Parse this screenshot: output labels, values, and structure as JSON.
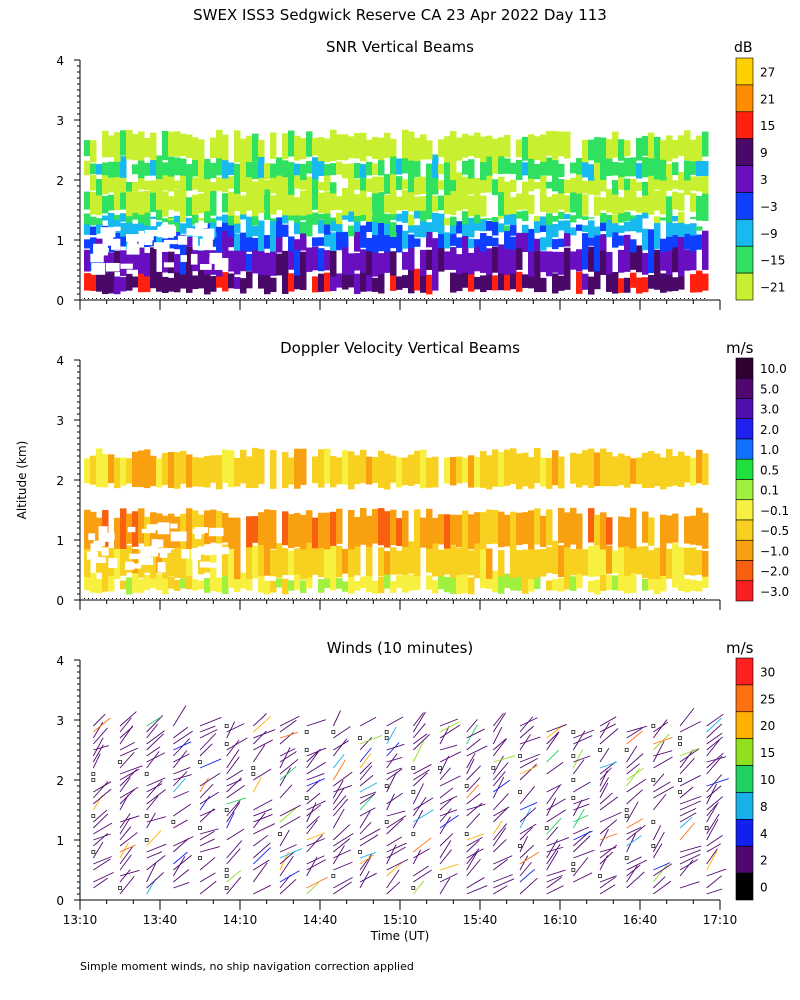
{
  "page_title": "SWEX ISS3 Sedgwick Reserve CA  23 Apr 2022 Day 113",
  "y_axis_label": "Altitude (km)",
  "x_axis_label": "Time (UT)",
  "footnote": "Simple moment winds, no ship navigation correction applied",
  "chart_data": [
    {
      "id": "snr",
      "type": "heatmap",
      "title": "SNR Vertical Beams",
      "unit": "dB",
      "ylim": [
        0,
        4
      ],
      "yticks": [
        "0",
        "1",
        "2",
        "3",
        "4"
      ],
      "xlim": [
        "13:10",
        "17:10"
      ],
      "colorbar": {
        "labels": [
          "27",
          "21",
          "15",
          "9",
          "3",
          "−3",
          "−9",
          "−15",
          "−21"
        ],
        "colors": [
          "#ffd000",
          "#ff8c00",
          "#ff2010",
          "#4a0868",
          "#6810c0",
          "#1040ff",
          "#18b8f0",
          "#30e060",
          "#c8f030"
        ]
      },
      "layers": [
        {
          "from_km": 0.15,
          "to_km": 0.45,
          "level": 9
        },
        {
          "from_km": 0.45,
          "to_km": 0.85,
          "level": 3
        },
        {
          "from_km": 0.85,
          "to_km": 1.1,
          "level": -3
        },
        {
          "from_km": 1.1,
          "to_km": 1.3,
          "level": -9
        },
        {
          "from_km": 1.3,
          "to_km": 1.45,
          "level": -15
        },
        {
          "from_km": 1.45,
          "to_km": 1.8,
          "level": -21
        },
        {
          "from_km": 1.8,
          "to_km": 2.05,
          "level": -21
        },
        {
          "from_km": 2.05,
          "to_km": 2.35,
          "level": -15
        },
        {
          "from_km": 2.35,
          "to_km": 2.75,
          "level": -21
        }
      ]
    },
    {
      "id": "doppler",
      "type": "heatmap",
      "title": "Doppler Velocity Vertical Beams",
      "unit": "m/s",
      "ylim": [
        0,
        4
      ],
      "yticks": [
        "0",
        "1",
        "2",
        "3",
        "4"
      ],
      "xlim": [
        "13:10",
        "17:10"
      ],
      "colorbar": {
        "labels": [
          "10.0",
          "5.0",
          "3.0",
          "2.0",
          "1.0",
          "0.5",
          "0.1",
          "−0.1",
          "−0.5",
          "−1.0",
          "−2.0",
          "−3.0"
        ],
        "colors": [
          "#300030",
          "#500870",
          "#5010b0",
          "#2020f0",
          "#1070ff",
          "#20e040",
          "#a0f040",
          "#f8f040",
          "#f8d020",
          "#f8a010",
          "#f86010",
          "#f82020"
        ]
      },
      "layers": [
        {
          "from_km": 0.15,
          "to_km": 0.4,
          "level": -0.1
        },
        {
          "from_km": 0.4,
          "to_km": 0.9,
          "level": -0.5
        },
        {
          "from_km": 0.9,
          "to_km": 1.45,
          "level": -1.0
        },
        {
          "from_km": 1.9,
          "to_km": 2.45,
          "level": -0.5
        }
      ]
    },
    {
      "id": "winds",
      "type": "scatter",
      "title": "Winds (10 minutes)",
      "unit": "m/s",
      "ylim": [
        0,
        4
      ],
      "yticks": [
        "0",
        "1",
        "2",
        "3",
        "4"
      ],
      "xticks": [
        "13:10",
        "13:40",
        "14:10",
        "14:40",
        "15:10",
        "15:40",
        "16:10",
        "16:40",
        "17:10"
      ],
      "colorbar": {
        "labels": [
          "30",
          "25",
          "20",
          "15",
          "10",
          "8",
          "4",
          "2",
          "0"
        ],
        "colors": [
          "#ff2020",
          "#ff7010",
          "#ffb000",
          "#90e020",
          "#20d060",
          "#18b0e8",
          "#1020f0",
          "#500870",
          "#000000"
        ]
      },
      "barb_times_min": [
        5,
        15,
        25,
        35,
        45,
        55,
        65,
        75,
        85,
        95,
        105,
        115,
        125,
        135,
        145,
        155,
        165,
        175,
        185,
        195,
        205,
        215,
        225,
        235
      ],
      "barb_altitude_km": {
        "min": 0.1,
        "max": 2.9,
        "step": 0.1
      }
    }
  ]
}
